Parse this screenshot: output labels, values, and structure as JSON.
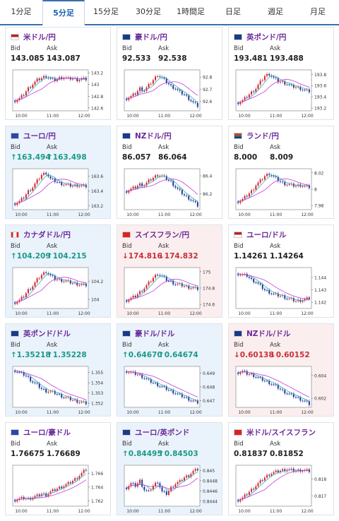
{
  "tabs": [
    "1分足",
    "5分足",
    "15分足",
    "30分足",
    "1時間足",
    "日足",
    "週足",
    "月足"
  ],
  "active_tab": 1,
  "labels": {
    "bid": "Bid",
    "ask": "Ask"
  },
  "colors": {
    "up_candle": "#d7262e",
    "down_candle": "#1f3c9a",
    "ma_short": "#3bb3b3",
    "ma_long": "#c23bd6",
    "title": "#6a2a9a",
    "frame": "#999999"
  },
  "cards": [
    {
      "title": "米ドル/円",
      "flag": "usd-flag",
      "bid": "143.085",
      "ask": "143.087",
      "dir": "",
      "chart_data": {
        "type": "candlestick",
        "x_ticks": [
          "10:00",
          "11:00",
          "12:00"
        ],
        "y_ticks": [
          "143.2",
          "143",
          "142.8",
          "142.6"
        ],
        "y_range": [
          142.55,
          143.25
        ],
        "shape": [
          0.25,
          0.3,
          0.4,
          0.55,
          0.65,
          0.75,
          0.8,
          0.85,
          0.78,
          0.75,
          0.8,
          0.82,
          0.78,
          0.8,
          0.76,
          0.78,
          0.77
        ]
      }
    },
    {
      "title": "豪ドル/円",
      "flag": "aud-flag",
      "bid": "92.533",
      "ask": "92.538",
      "dir": "",
      "chart_data": {
        "type": "candlestick",
        "x_ticks": [
          "10:00",
          "11:00",
          "12:00"
        ],
        "y_ticks": [
          "92.8",
          "92.7",
          "92.6"
        ],
        "y_range": [
          92.52,
          92.86
        ],
        "shape": [
          0.3,
          0.35,
          0.42,
          0.55,
          0.5,
          0.62,
          0.75,
          0.88,
          0.8,
          0.7,
          0.6,
          0.55,
          0.45,
          0.4,
          0.3,
          0.2,
          0.12
        ]
      }
    },
    {
      "title": "英ポンド/円",
      "flag": "gbp-flag",
      "bid": "193.481",
      "ask": "193.488",
      "dir": "",
      "chart_data": {
        "type": "candlestick",
        "x_ticks": [
          "10:00",
          "11:00",
          "12:00"
        ],
        "y_ticks": [
          "193.8",
          "193.6",
          "193.4",
          "193.2"
        ],
        "y_range": [
          193.15,
          193.88
        ],
        "shape": [
          0.2,
          0.25,
          0.35,
          0.45,
          0.55,
          0.7,
          0.85,
          0.9,
          0.8,
          0.72,
          0.7,
          0.66,
          0.6,
          0.58,
          0.55,
          0.5,
          0.48
        ]
      }
    },
    {
      "title": "ユーロ/円",
      "flag": "eur-flag",
      "bid": "↑163.494",
      "ask": "↑163.498",
      "dir": "up",
      "chart_data": {
        "type": "candlestick",
        "x_ticks": [
          "10:00",
          "11:00",
          "12:00"
        ],
        "y_ticks": [
          "163.6",
          "163.4",
          "163.2"
        ],
        "y_range": [
          163.15,
          163.7
        ],
        "shape": [
          0.15,
          0.2,
          0.3,
          0.45,
          0.55,
          0.7,
          0.85,
          0.9,
          0.75,
          0.7,
          0.65,
          0.62,
          0.6,
          0.58,
          0.6,
          0.58,
          0.57
        ]
      }
    },
    {
      "title": "NZドル/円",
      "flag": "nzd-flag",
      "bid": "86.057",
      "ask": "86.064",
      "dir": "",
      "chart_data": {
        "type": "candlestick",
        "x_ticks": [
          "10:00",
          "11:00",
          "12:00"
        ],
        "y_ticks": [
          "86.4",
          "86.2"
        ],
        "y_range": [
          86.02,
          86.48
        ],
        "shape": [
          0.45,
          0.5,
          0.55,
          0.62,
          0.6,
          0.7,
          0.78,
          0.85,
          0.82,
          0.75,
          0.68,
          0.55,
          0.45,
          0.35,
          0.28,
          0.2,
          0.1
        ]
      }
    },
    {
      "title": "ランド/円",
      "flag": "zar-flag",
      "bid": "8.000",
      "ask": "8.009",
      "dir": "",
      "chart_data": {
        "type": "candlestick",
        "x_ticks": [
          "10:00",
          "11:00",
          "12:00"
        ],
        "y_ticks": [
          "8.02",
          "8",
          "7.98"
        ],
        "y_range": [
          7.975,
          8.025
        ],
        "shape": [
          0.2,
          0.25,
          0.35,
          0.45,
          0.6,
          0.7,
          0.82,
          0.88,
          0.8,
          0.72,
          0.65,
          0.62,
          0.6,
          0.58,
          0.6,
          0.57,
          0.55
        ]
      }
    },
    {
      "title": "カナダドル/円",
      "flag": "cad-flag",
      "bid": "↑104.209",
      "ask": "↑104.215",
      "dir": "up",
      "chart_data": {
        "type": "candlestick",
        "x_ticks": [
          "10:00",
          "11:00",
          "12:00"
        ],
        "y_ticks": [
          "104.2",
          "104"
        ],
        "y_range": [
          103.9,
          104.35
        ],
        "shape": [
          0.15,
          0.2,
          0.3,
          0.45,
          0.55,
          0.7,
          0.82,
          0.9,
          0.8,
          0.72,
          0.7,
          0.68,
          0.65,
          0.62,
          0.6,
          0.58,
          0.57
        ]
      }
    },
    {
      "title": "スイスフラン/円",
      "flag": "chf-flag",
      "bid": "↓174.816",
      "ask": "↓174.832",
      "dir": "down",
      "chart_data": {
        "type": "candlestick",
        "x_ticks": [
          "10:00",
          "11:00",
          "12:00"
        ],
        "y_ticks": [
          "175",
          "174.8",
          "174.6"
        ],
        "y_range": [
          174.55,
          175.05
        ],
        "shape": [
          0.2,
          0.25,
          0.3,
          0.4,
          0.5,
          0.62,
          0.75,
          0.85,
          0.78,
          0.7,
          0.65,
          0.6,
          0.58,
          0.55,
          0.52,
          0.5,
          0.48
        ]
      }
    },
    {
      "title": "ユーロ/ドル",
      "flag": "usd-flag",
      "bid": "1.14261",
      "ask": "1.14264",
      "dir": "",
      "chart_data": {
        "type": "candlestick",
        "x_ticks": [
          "10:00",
          "11:00",
          "12:00"
        ],
        "y_ticks": [
          "1.144",
          "1.143",
          "1.142"
        ],
        "y_range": [
          1.1415,
          1.1448
        ],
        "shape": [
          0.85,
          0.82,
          0.8,
          0.7,
          0.65,
          0.55,
          0.45,
          0.4,
          0.35,
          0.32,
          0.3,
          0.25,
          0.22,
          0.18,
          0.2,
          0.22,
          0.25
        ]
      }
    },
    {
      "title": "英ポンド/ドル",
      "flag": "gbp-flag",
      "bid": "↑1.35218",
      "ask": "↑1.35228",
      "dir": "up",
      "chart_data": {
        "type": "candlestick",
        "x_ticks": [
          "10:00",
          "11:00",
          "12:00"
        ],
        "y_ticks": [
          "1.355",
          "1.354",
          "1.353",
          "1.352"
        ],
        "y_range": [
          1.3516,
          1.3556
        ],
        "shape": [
          0.9,
          0.85,
          0.8,
          0.72,
          0.62,
          0.55,
          0.45,
          0.4,
          0.38,
          0.35,
          0.3,
          0.25,
          0.22,
          0.18,
          0.15,
          0.12,
          0.1
        ]
      }
    },
    {
      "title": "豪ドル/ドル",
      "flag": "aud-flag",
      "bid": "↑0.64670",
      "ask": "↑0.64674",
      "dir": "up",
      "chart_data": {
        "type": "candlestick",
        "x_ticks": [
          "10:00",
          "11:00",
          "12:00"
        ],
        "y_ticks": [
          "0.649",
          "0.648",
          "0.647"
        ],
        "y_range": [
          0.6465,
          0.6495
        ],
        "shape": [
          0.88,
          0.85,
          0.82,
          0.78,
          0.72,
          0.65,
          0.6,
          0.55,
          0.5,
          0.45,
          0.4,
          0.35,
          0.3,
          0.25,
          0.2,
          0.15,
          0.12
        ]
      }
    },
    {
      "title": "NZドル/ドル",
      "flag": "nzd-flag",
      "bid": "↓0.60138",
      "ask": "↓0.60152",
      "dir": "down",
      "chart_data": {
        "type": "candlestick",
        "x_ticks": [
          "10:00",
          "11:00",
          "12:00"
        ],
        "y_ticks": [
          "0.604",
          "0.602"
        ],
        "y_range": [
          0.6012,
          0.6048
        ],
        "shape": [
          0.85,
          0.88,
          0.82,
          0.8,
          0.75,
          0.7,
          0.65,
          0.6,
          0.55,
          0.48,
          0.4,
          0.35,
          0.3,
          0.25,
          0.2,
          0.15,
          0.08
        ]
      }
    },
    {
      "title": "ユーロ/豪ドル",
      "flag": "eur-flag",
      "bid": "1.76675",
      "ask": "1.76689",
      "dir": "",
      "chart_data": {
        "type": "candlestick",
        "x_ticks": [
          "10:00",
          "11:00",
          "12:00"
        ],
        "y_ticks": [
          "1.766",
          "1.764",
          "1.762"
        ],
        "y_range": [
          1.7612,
          1.7672
        ],
        "shape": [
          0.15,
          0.18,
          0.2,
          0.18,
          0.22,
          0.25,
          0.3,
          0.28,
          0.35,
          0.4,
          0.45,
          0.5,
          0.55,
          0.62,
          0.7,
          0.8,
          0.9
        ]
      }
    },
    {
      "title": "ユーロ/英ポンド",
      "flag": "gbp-flag",
      "bid": "↑0.84495",
      "ask": "↑0.84503",
      "dir": "up",
      "chart_data": {
        "type": "candlestick",
        "x_ticks": [
          "10:00",
          "11:00",
          "12:00"
        ],
        "y_ticks": [
          "0.845",
          "0.8448",
          "0.8446",
          "0.8444"
        ],
        "y_range": [
          0.8443,
          0.8451
        ],
        "shape": [
          0.45,
          0.55,
          0.5,
          0.62,
          0.4,
          0.35,
          0.5,
          0.6,
          0.35,
          0.3,
          0.45,
          0.55,
          0.6,
          0.7,
          0.75,
          0.85,
          0.9
        ]
      }
    },
    {
      "title": "米ドル/スイスフラン",
      "flag": "chf-flag",
      "bid": "0.81837",
      "ask": "0.81852",
      "dir": "",
      "chart_data": {
        "type": "candlestick",
        "x_ticks": [
          "10:00",
          "11:00",
          "12:00"
        ],
        "y_ticks": [
          "0.818",
          "0.817"
        ],
        "y_range": [
          0.8164,
          0.8188
        ],
        "shape": [
          0.15,
          0.2,
          0.3,
          0.4,
          0.5,
          0.6,
          0.7,
          0.78,
          0.82,
          0.85,
          0.88,
          0.9,
          0.88,
          0.86,
          0.88,
          0.87,
          0.86
        ]
      }
    }
  ]
}
